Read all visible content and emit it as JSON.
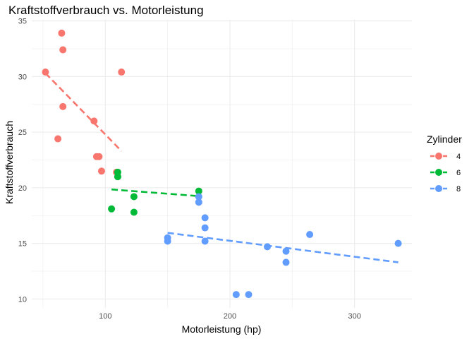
{
  "chart_data": {
    "type": "scatter",
    "title": "Kraftstoffverbrauch vs. Motorleistung",
    "xlabel": "Motorleistung (hp)",
    "ylabel": "Kraftstoffverbrauch",
    "xlim": [
      41,
      346
    ],
    "ylim": [
      9.2,
      35.1
    ],
    "x_ticks": [
      100,
      200,
      300
    ],
    "y_ticks": [
      10,
      15,
      20,
      25,
      30,
      35
    ],
    "grid": true,
    "legend": {
      "title": "Zylinder",
      "placement": "right"
    },
    "series": [
      {
        "name": "4",
        "color": "#F8766D",
        "points": [
          [
            93,
            22.8
          ],
          [
            62,
            24.4
          ],
          [
            95,
            22.8
          ],
          [
            66,
            32.4
          ],
          [
            52,
            30.4
          ],
          [
            65,
            33.9
          ],
          [
            97,
            21.5
          ],
          [
            66,
            27.3
          ],
          [
            91,
            26.0
          ],
          [
            113,
            30.4
          ],
          [
            109,
            21.4
          ]
        ],
        "trend": [
          [
            52,
            30.3
          ],
          [
            113,
            23.3
          ]
        ]
      },
      {
        "name": "6",
        "color": "#00BA38",
        "points": [
          [
            110,
            21.0
          ],
          [
            110,
            21.0
          ],
          [
            110,
            21.4
          ],
          [
            105,
            18.1
          ],
          [
            123,
            19.2
          ],
          [
            123,
            17.8
          ],
          [
            175,
            19.7
          ]
        ],
        "trend": [
          [
            105,
            19.85
          ],
          [
            175,
            19.25
          ]
        ]
      },
      {
        "name": "8",
        "color": "#619CFF",
        "points": [
          [
            175,
            18.7
          ],
          [
            245,
            14.3
          ],
          [
            180,
            16.4
          ],
          [
            180,
            17.3
          ],
          [
            180,
            15.2
          ],
          [
            205,
            10.4
          ],
          [
            215,
            10.4
          ],
          [
            230,
            14.7
          ],
          [
            150,
            15.5
          ],
          [
            150,
            15.2
          ],
          [
            245,
            13.3
          ],
          [
            175,
            19.2
          ],
          [
            264,
            15.8
          ],
          [
            335,
            15.0
          ]
        ],
        "trend": [
          [
            150,
            15.95
          ],
          [
            335,
            13.3
          ]
        ]
      }
    ]
  }
}
